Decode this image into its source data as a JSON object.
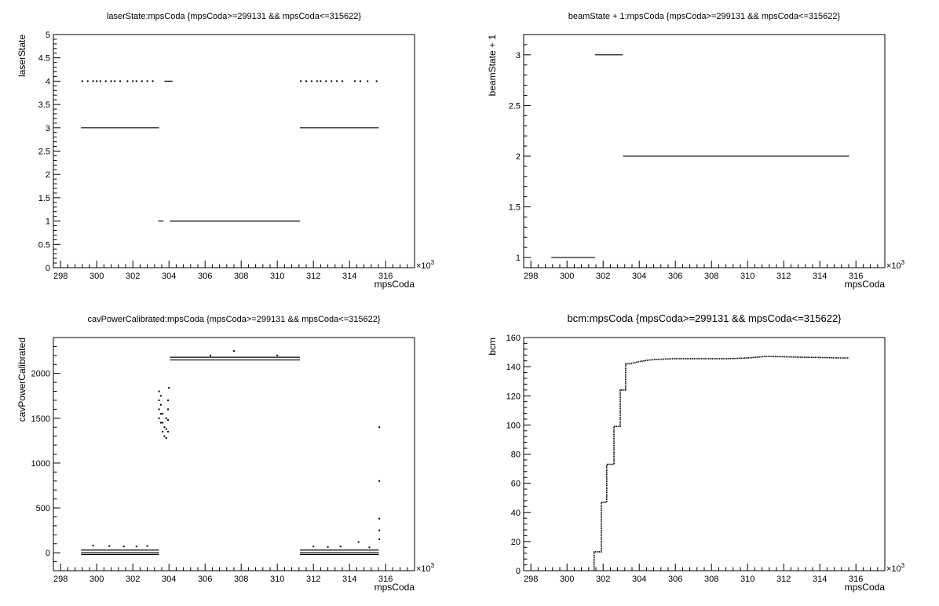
{
  "chart_data": [
    {
      "type": "scatter",
      "title": "laserState:mpsCoda {mpsCoda>=299131 && mpsCoda<=315622}",
      "xlabel": "mpsCoda",
      "ylabel": "laserState",
      "x_exponent": "×10",
      "x_exponent_power": "3",
      "xlim": [
        297.6,
        317.6
      ],
      "ylim": [
        0,
        5
      ],
      "x_ticks": [
        298,
        300,
        302,
        304,
        306,
        308,
        310,
        312,
        314,
        316
      ],
      "y_ticks": [
        0,
        0.5,
        1,
        1.5,
        2,
        2.5,
        3,
        3.5,
        4,
        4.5,
        5
      ],
      "grid": false,
      "segments": [
        {
          "x0": 299.131,
          "x1": 303.45,
          "y": 3
        },
        {
          "x0": 311.25,
          "x1": 315.622,
          "y": 3
        },
        {
          "x0": 303.4,
          "x1": 303.7,
          "y": 1
        },
        {
          "x0": 304.05,
          "x1": 311.25,
          "y": 1
        },
        {
          "x0": 303.75,
          "x1": 304.2,
          "y": 4
        }
      ],
      "points": [
        {
          "x": 299.2,
          "y": 4
        },
        {
          "x": 299.5,
          "y": 4
        },
        {
          "x": 299.8,
          "y": 4
        },
        {
          "x": 300.0,
          "y": 4
        },
        {
          "x": 300.2,
          "y": 4
        },
        {
          "x": 300.5,
          "y": 4
        },
        {
          "x": 300.8,
          "y": 4
        },
        {
          "x": 301.0,
          "y": 4
        },
        {
          "x": 301.3,
          "y": 4
        },
        {
          "x": 301.7,
          "y": 4
        },
        {
          "x": 302.0,
          "y": 4
        },
        {
          "x": 302.2,
          "y": 4
        },
        {
          "x": 302.5,
          "y": 4
        },
        {
          "x": 302.8,
          "y": 4
        },
        {
          "x": 303.1,
          "y": 4
        },
        {
          "x": 311.3,
          "y": 4
        },
        {
          "x": 311.6,
          "y": 4
        },
        {
          "x": 311.9,
          "y": 4
        },
        {
          "x": 312.2,
          "y": 4
        },
        {
          "x": 312.4,
          "y": 4
        },
        {
          "x": 312.7,
          "y": 4
        },
        {
          "x": 313.0,
          "y": 4
        },
        {
          "x": 313.3,
          "y": 4
        },
        {
          "x": 313.6,
          "y": 4
        },
        {
          "x": 314.3,
          "y": 4
        },
        {
          "x": 314.6,
          "y": 4
        },
        {
          "x": 315.0,
          "y": 4
        },
        {
          "x": 315.5,
          "y": 4
        }
      ]
    },
    {
      "type": "scatter",
      "title": "beamState + 1:mpsCoda {mpsCoda>=299131 && mpsCoda<=315622}",
      "xlabel": "mpsCoda",
      "ylabel": "beamState + 1",
      "x_exponent": "×10",
      "x_exponent_power": "3",
      "xlim": [
        297.6,
        317.6
      ],
      "ylim": [
        0.9,
        3.2
      ],
      "x_ticks": [
        298,
        300,
        302,
        304,
        306,
        308,
        310,
        312,
        314,
        316
      ],
      "y_ticks": [
        1,
        1.5,
        2,
        2.5,
        3
      ],
      "grid": false,
      "segments": [
        {
          "x0": 299.131,
          "x1": 301.55,
          "y": 1
        },
        {
          "x0": 301.55,
          "x1": 303.1,
          "y": 3
        },
        {
          "x0": 303.1,
          "x1": 315.622,
          "y": 2
        }
      ],
      "points": []
    },
    {
      "type": "scatter",
      "title": "cavPowerCalibrated:mpsCoda {mpsCoda>=299131 && mpsCoda<=315622}",
      "xlabel": "mpsCoda",
      "ylabel": "cavPowerCalibrated",
      "x_exponent": "×10",
      "x_exponent_power": "3",
      "xlim": [
        297.6,
        317.6
      ],
      "ylim": [
        -200,
        2400
      ],
      "x_ticks": [
        298,
        300,
        302,
        304,
        306,
        308,
        310,
        312,
        314,
        316
      ],
      "y_ticks": [
        0,
        500,
        1000,
        1500,
        2000
      ],
      "grid": false,
      "segments": [
        {
          "x0": 299.131,
          "x1": 303.45,
          "y": 30
        },
        {
          "x0": 299.131,
          "x1": 303.45,
          "y": 0
        },
        {
          "x0": 299.131,
          "x1": 303.45,
          "y": -20
        },
        {
          "x0": 311.25,
          "x1": 315.622,
          "y": 30
        },
        {
          "x0": 311.25,
          "x1": 315.622,
          "y": 0
        },
        {
          "x0": 311.25,
          "x1": 315.622,
          "y": -20
        },
        {
          "x0": 304.05,
          "x1": 311.25,
          "y": 2180
        },
        {
          "x0": 304.05,
          "x1": 311.25,
          "y": 2150
        }
      ],
      "points": [
        {
          "x": 299.8,
          "y": 80
        },
        {
          "x": 300.7,
          "y": 75
        },
        {
          "x": 301.5,
          "y": 70
        },
        {
          "x": 302.2,
          "y": 70
        },
        {
          "x": 302.8,
          "y": 75
        },
        {
          "x": 312.0,
          "y": 70
        },
        {
          "x": 312.8,
          "y": 65
        },
        {
          "x": 313.5,
          "y": 70
        },
        {
          "x": 314.5,
          "y": 120
        },
        {
          "x": 315.1,
          "y": 60
        },
        {
          "x": 303.45,
          "y": 1500
        },
        {
          "x": 303.45,
          "y": 1600
        },
        {
          "x": 303.45,
          "y": 1700
        },
        {
          "x": 303.45,
          "y": 1800
        },
        {
          "x": 303.55,
          "y": 1450
        },
        {
          "x": 303.55,
          "y": 1550
        },
        {
          "x": 303.55,
          "y": 1650
        },
        {
          "x": 303.55,
          "y": 1750
        },
        {
          "x": 303.65,
          "y": 1350
        },
        {
          "x": 303.65,
          "y": 1450
        },
        {
          "x": 303.65,
          "y": 1550
        },
        {
          "x": 303.75,
          "y": 1300
        },
        {
          "x": 303.75,
          "y": 1400
        },
        {
          "x": 303.85,
          "y": 1280
        },
        {
          "x": 303.85,
          "y": 1380
        },
        {
          "x": 303.85,
          "y": 1500
        },
        {
          "x": 303.95,
          "y": 1350
        },
        {
          "x": 303.95,
          "y": 1480
        },
        {
          "x": 303.95,
          "y": 1600
        },
        {
          "x": 303.95,
          "y": 1700
        },
        {
          "x": 304.0,
          "y": 1840
        },
        {
          "x": 307.6,
          "y": 2250
        },
        {
          "x": 306.3,
          "y": 2200
        },
        {
          "x": 310.0,
          "y": 2200
        },
        {
          "x": 315.65,
          "y": 1400
        },
        {
          "x": 315.65,
          "y": 800
        },
        {
          "x": 315.65,
          "y": 380
        },
        {
          "x": 315.65,
          "y": 250
        },
        {
          "x": 315.65,
          "y": 150
        }
      ]
    },
    {
      "type": "line",
      "title": "bcm:mpsCoda {mpsCoda>=299131 && mpsCoda<=315622}",
      "xlabel": "mpsCoda",
      "ylabel": "bcm",
      "x_exponent": "×10",
      "x_exponent_power": "3",
      "xlim": [
        297.6,
        317.6
      ],
      "ylim": [
        0,
        160
      ],
      "x_ticks": [
        298,
        300,
        302,
        304,
        306,
        308,
        310,
        312,
        314,
        316
      ],
      "y_ticks": [
        0,
        20,
        40,
        60,
        80,
        100,
        120,
        140,
        160
      ],
      "grid": false,
      "series": [
        {
          "x": [
            301.5,
            301.5,
            301.9,
            301.9,
            302.2,
            302.2,
            302.6,
            302.6,
            302.95,
            302.95,
            303.25,
            303.25,
            303.5,
            304.0,
            304.5,
            305.0,
            306.0,
            307.0,
            308.0,
            309.0,
            310.0,
            311.0,
            312.0,
            313.0,
            314.0,
            315.0,
            315.622
          ],
          "y": [
            0,
            13,
            13,
            47,
            47,
            73,
            73,
            99,
            99,
            124,
            124,
            142,
            142,
            143.5,
            144.5,
            145,
            145.5,
            145.5,
            145.5,
            145.5,
            146,
            147,
            146.8,
            146.5,
            146.3,
            146,
            146
          ]
        }
      ]
    }
  ]
}
